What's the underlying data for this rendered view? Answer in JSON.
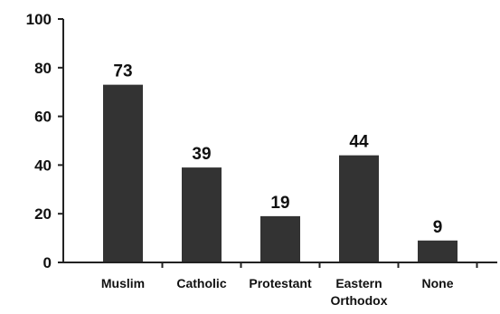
{
  "chart_data": {
    "type": "bar",
    "categories": [
      [
        "Muslim"
      ],
      [
        "Catholic"
      ],
      [
        "Protestant"
      ],
      [
        "Eastern",
        "Orthodox"
      ],
      [
        "None"
      ]
    ],
    "values": [
      73,
      39,
      19,
      44,
      9
    ],
    "data_labels": [
      "73",
      "39",
      "19",
      "44",
      "9"
    ],
    "ylim": [
      0,
      100
    ],
    "yticks": [
      0,
      20,
      40,
      60,
      80,
      100
    ],
    "ytick_labels": [
      "0",
      "20",
      "40",
      "60",
      "80",
      "100"
    ],
    "title": "",
    "xlabel": "",
    "ylabel": "",
    "grid": false,
    "bar_color": "#333333",
    "axis_color": "#222222"
  }
}
